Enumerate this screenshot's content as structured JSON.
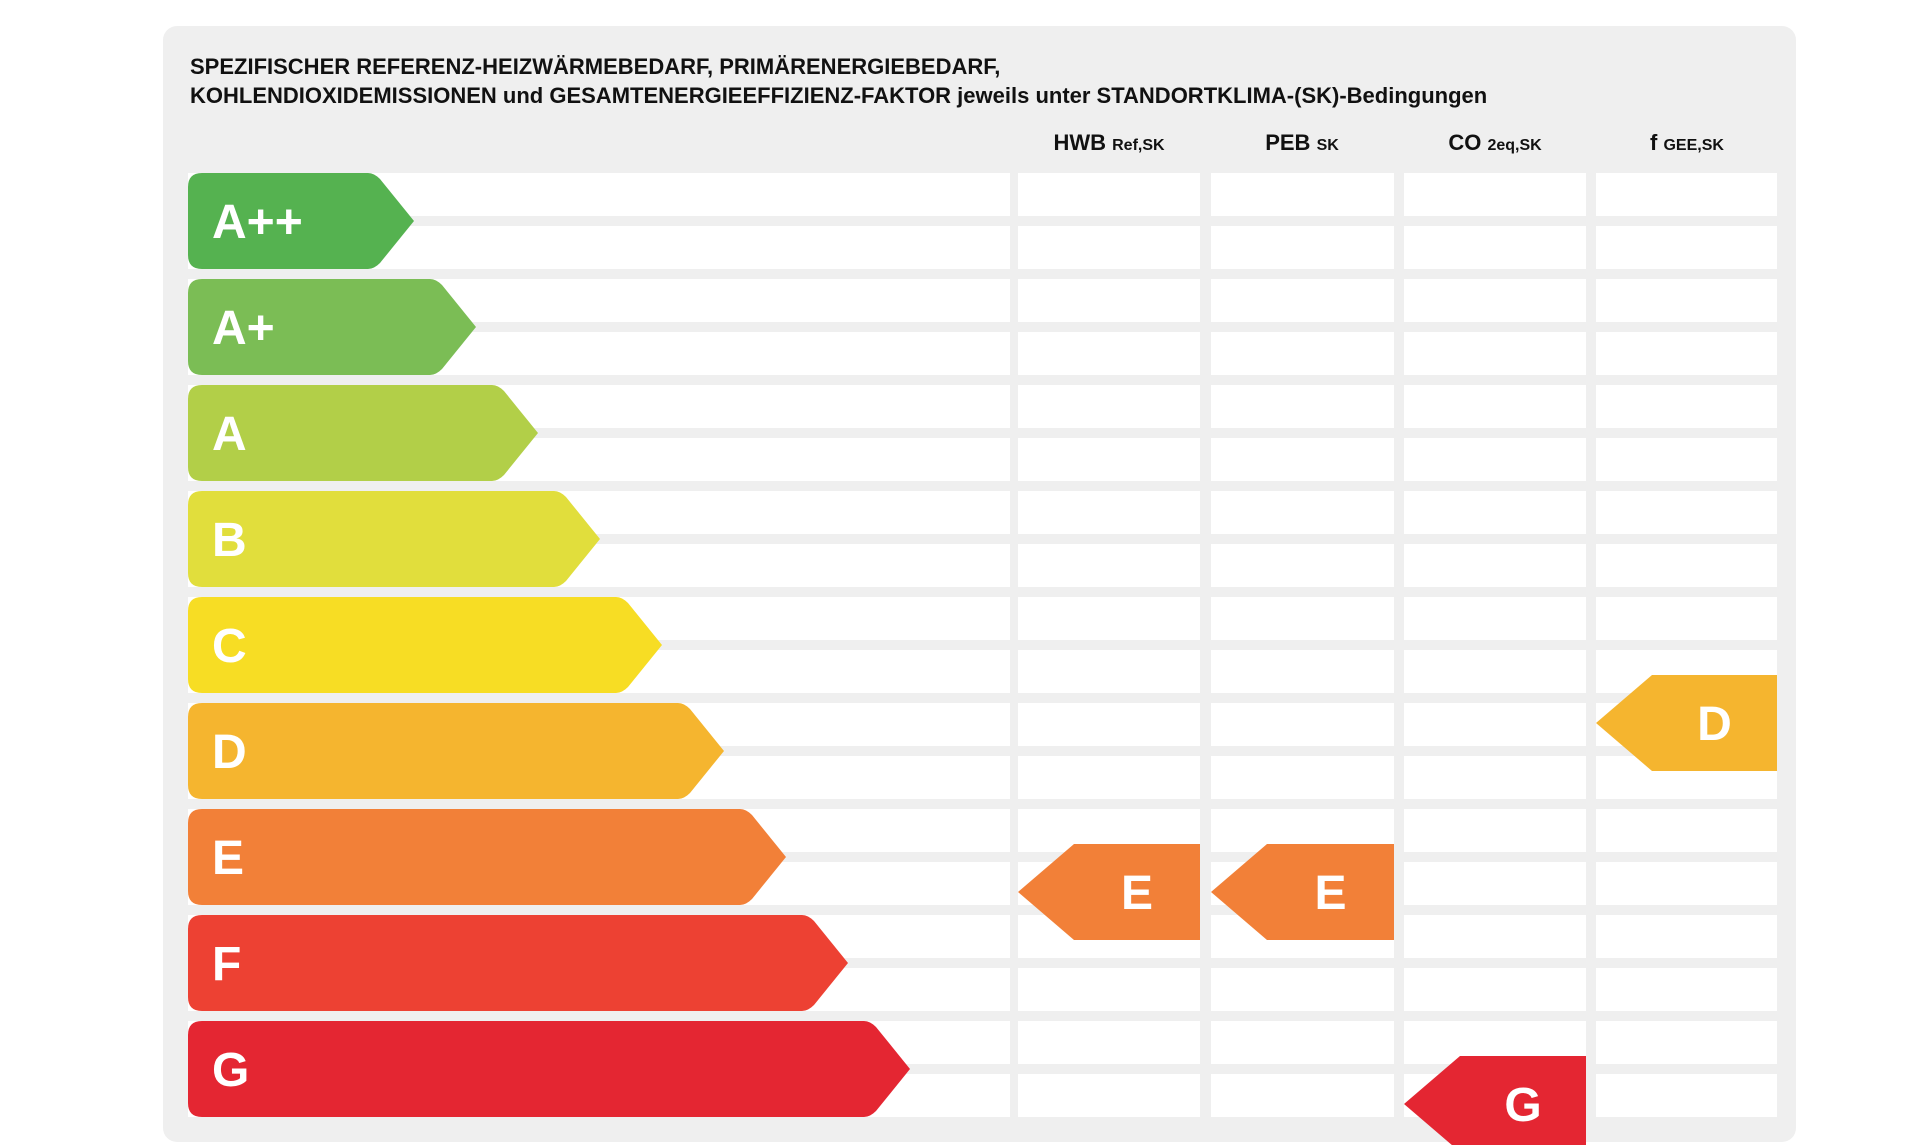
{
  "title_lines": [
    "SPEZIFISCHER REFERENZ-HEIZWÄRMEBEDARF, PRIMÄRENERGIEBEDARF,",
    "KOHLENDIOXIDEMISSIONEN und GESAMTENERGIEEFFIZIENZ-FAKTOR jeweils unter STANDORTKLIMA-(SK)-Bedingungen"
  ],
  "columns": [
    {
      "label": "HWB",
      "sub": "Ref,SK"
    },
    {
      "label": "PEB",
      "sub": "SK"
    },
    {
      "label": "CO",
      "sub": "2eq,SK"
    },
    {
      "label": "f",
      "sub": "GEE,SK"
    }
  ],
  "chart_data": {
    "type": "table",
    "classes": [
      {
        "label": "A++",
        "color": "#55b250"
      },
      {
        "label": "A+",
        "color": "#7bbd55"
      },
      {
        "label": "A",
        "color": "#b2cf48"
      },
      {
        "label": "B",
        "color": "#e1de3c"
      },
      {
        "label": "C",
        "color": "#f7dd24"
      },
      {
        "label": "D",
        "color": "#f5b52f"
      },
      {
        "label": "E",
        "color": "#f28038"
      },
      {
        "label": "F",
        "color": "#ed4133"
      },
      {
        "label": "G",
        "color": "#e42632"
      }
    ],
    "ratings": [
      {
        "column": "HWB Ref,SK",
        "rating": "E",
        "color": "#f28038"
      },
      {
        "column": "PEB SK",
        "rating": "E",
        "color": "#f28038"
      },
      {
        "column": "CO 2eq,SK",
        "rating": "G",
        "color": "#e42632"
      },
      {
        "column": "f GEE,SK",
        "rating": "D",
        "color": "#f5b52f"
      }
    ]
  }
}
